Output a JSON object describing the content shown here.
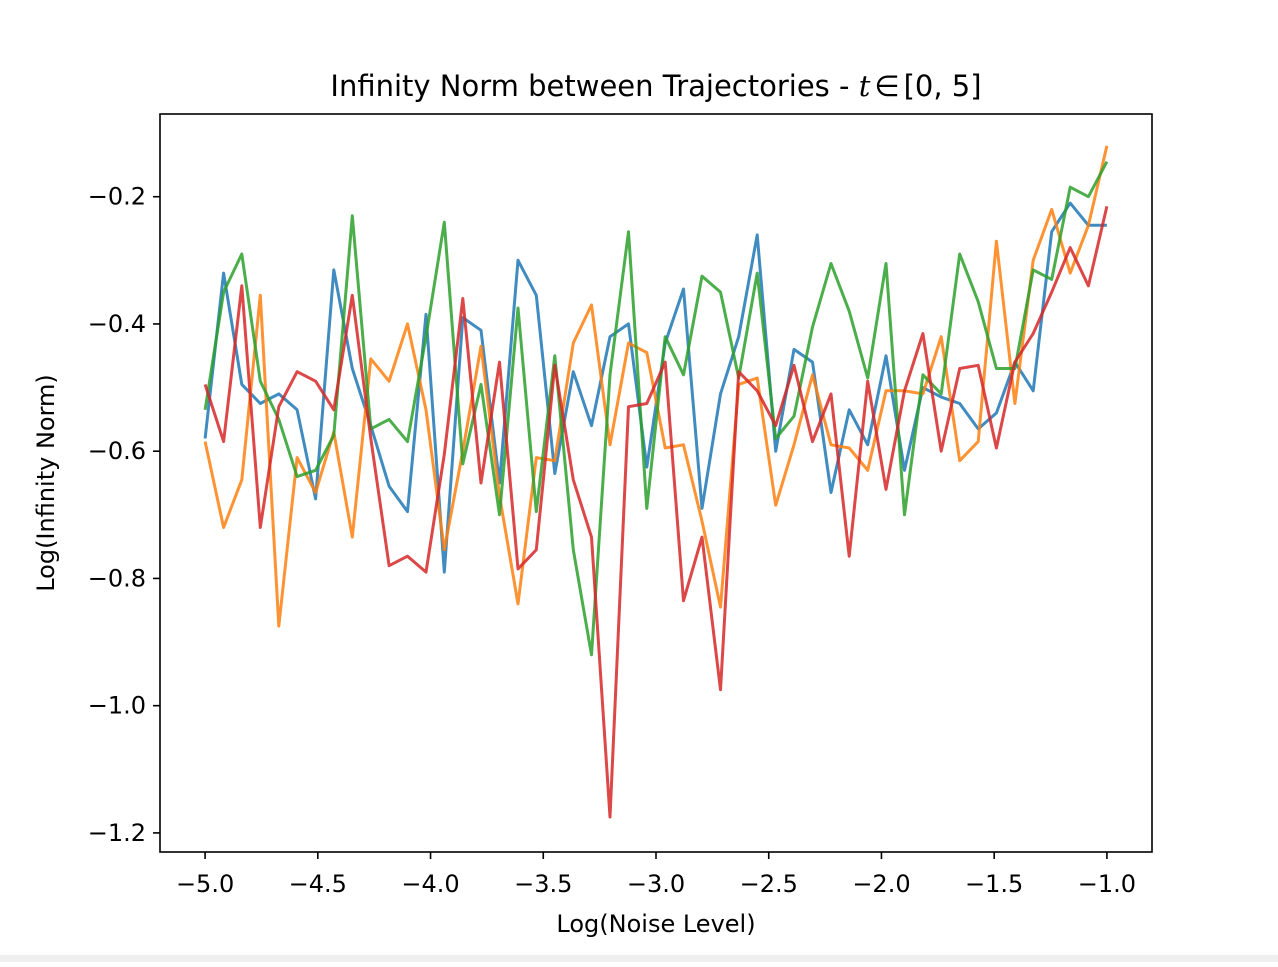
{
  "chart_data": {
    "type": "line",
    "title": "Infinity Norm between Trajectories - ",
    "title_math": {
      "var": "t",
      "rel": "∈",
      "set": "[0, 5]"
    },
    "xlabel": "Log(Noise Level)",
    "ylabel": "Log(Infinity Norm)",
    "xlim": [
      -5.2,
      -0.8
    ],
    "ylim": [
      -1.23,
      -0.07
    ],
    "xticks": [
      -5.0,
      -4.5,
      -4.0,
      -3.5,
      -3.0,
      -2.5,
      -2.0,
      -1.5,
      -1.0
    ],
    "xtick_labels": [
      "−5.0",
      "−4.5",
      "−4.0",
      "−3.5",
      "−3.0",
      "−2.5",
      "−2.0",
      "−1.5",
      "−1.0"
    ],
    "yticks": [
      -1.2,
      -1.0,
      -0.8,
      -0.6,
      -0.4,
      -0.2
    ],
    "ytick_labels": [
      "−1.2",
      "−1.0",
      "−0.8",
      "−0.6",
      "−0.4",
      "−0.2"
    ],
    "grid": false,
    "legend": "none",
    "x": [
      -5.0,
      -4.918,
      -4.837,
      -4.755,
      -4.673,
      -4.592,
      -4.51,
      -4.429,
      -4.347,
      -4.265,
      -4.184,
      -4.102,
      -4.02,
      -3.939,
      -3.857,
      -3.776,
      -3.694,
      -3.612,
      -3.531,
      -3.449,
      -3.367,
      -3.286,
      -3.204,
      -3.122,
      -3.041,
      -2.959,
      -2.878,
      -2.796,
      -2.714,
      -2.633,
      -2.551,
      -2.469,
      -2.388,
      -2.306,
      -2.224,
      -2.143,
      -2.061,
      -1.98,
      -1.898,
      -1.816,
      -1.735,
      -1.653,
      -1.571,
      -1.49,
      -1.408,
      -1.327,
      -1.245,
      -1.163,
      -1.082,
      -1.0
    ],
    "series": [
      {
        "color": "#1f77b4",
        "values": [
          -0.58,
          -0.32,
          -0.495,
          -0.525,
          -0.51,
          -0.535,
          -0.675,
          -0.315,
          -0.47,
          -0.56,
          -0.655,
          -0.695,
          -0.385,
          -0.79,
          -0.39,
          -0.41,
          -0.65,
          -0.3,
          -0.355,
          -0.635,
          -0.475,
          -0.56,
          -0.42,
          -0.4,
          -0.625,
          -0.43,
          -0.345,
          -0.69,
          -0.51,
          -0.42,
          -0.26,
          -0.6,
          -0.44,
          -0.46,
          -0.665,
          -0.535,
          -0.59,
          -0.45,
          -0.63,
          -0.5,
          -0.515,
          -0.525,
          -0.565,
          -0.54,
          -0.46,
          -0.505,
          -0.255,
          -0.21,
          -0.245,
          -0.245
        ]
      },
      {
        "color": "#ff7f0e",
        "values": [
          -0.585,
          -0.72,
          -0.645,
          -0.355,
          -0.875,
          -0.61,
          -0.665,
          -0.57,
          -0.735,
          -0.455,
          -0.49,
          -0.4,
          -0.535,
          -0.755,
          -0.6,
          -0.435,
          -0.67,
          -0.84,
          -0.61,
          -0.615,
          -0.43,
          -0.37,
          -0.59,
          -0.43,
          -0.445,
          -0.595,
          -0.59,
          -0.71,
          -0.845,
          -0.495,
          -0.485,
          -0.685,
          -0.59,
          -0.48,
          -0.59,
          -0.595,
          -0.63,
          -0.505,
          -0.505,
          -0.51,
          -0.42,
          -0.615,
          -0.585,
          -0.27,
          -0.525,
          -0.3,
          -0.22,
          -0.32,
          -0.245,
          -0.12
        ]
      },
      {
        "color": "#2ca02c",
        "values": [
          -0.535,
          -0.35,
          -0.29,
          -0.49,
          -0.55,
          -0.64,
          -0.63,
          -0.575,
          -0.23,
          -0.565,
          -0.55,
          -0.585,
          -0.42,
          -0.24,
          -0.62,
          -0.495,
          -0.7,
          -0.375,
          -0.695,
          -0.45,
          -0.755,
          -0.92,
          -0.48,
          -0.255,
          -0.69,
          -0.42,
          -0.48,
          -0.325,
          -0.35,
          -0.485,
          -0.32,
          -0.58,
          -0.545,
          -0.405,
          -0.305,
          -0.38,
          -0.485,
          -0.305,
          -0.7,
          -0.48,
          -0.51,
          -0.29,
          -0.365,
          -0.47,
          -0.47,
          -0.315,
          -0.33,
          -0.185,
          -0.2,
          -0.145
        ]
      },
      {
        "color": "#d62728",
        "values": [
          -0.495,
          -0.585,
          -0.34,
          -0.72,
          -0.53,
          -0.475,
          -0.49,
          -0.535,
          -0.355,
          -0.58,
          -0.78,
          -0.765,
          -0.79,
          -0.605,
          -0.36,
          -0.65,
          -0.46,
          -0.785,
          -0.755,
          -0.465,
          -0.645,
          -0.735,
          -1.175,
          -0.53,
          -0.525,
          -0.46,
          -0.835,
          -0.735,
          -0.975,
          -0.475,
          -0.505,
          -0.56,
          -0.465,
          -0.585,
          -0.51,
          -0.765,
          -0.49,
          -0.66,
          -0.505,
          -0.415,
          -0.6,
          -0.47,
          -0.465,
          -0.595,
          -0.46,
          -0.415,
          -0.35,
          -0.28,
          -0.34,
          -0.215
        ]
      }
    ]
  }
}
